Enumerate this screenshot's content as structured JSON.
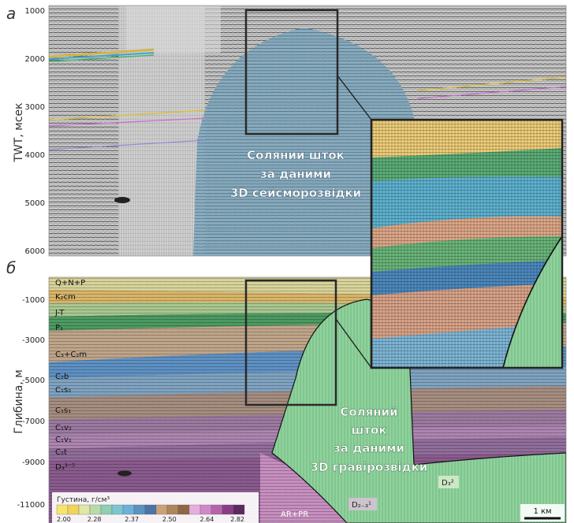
{
  "panel_a": {
    "letter": "а",
    "axis_title": "TWT, мсек",
    "ticks": [
      "1000",
      "2000",
      "3000",
      "4000",
      "5000",
      "6000"
    ],
    "salt_label": [
      "Соляний шток",
      "за даними",
      "3D сейсморозвідки"
    ]
  },
  "panel_b": {
    "letter": "б",
    "axis_title": "Глибина, м",
    "ticks": [
      "-1000",
      "-3000",
      "-5000",
      "-7000",
      "-9000",
      "-11000"
    ],
    "salt_label": [
      "Соляний",
      "шток",
      "за даними",
      "3D гравірозвідки"
    ],
    "layers": [
      {
        "label": "Q+N+P",
        "color": "#d8d49a"
      },
      {
        "label": "K₂cm",
        "color": "#d9b569"
      },
      {
        "label": "J-T",
        "color": "#a9c890"
      },
      {
        "label": "P₁",
        "color": "#4c9a61"
      },
      {
        "label": "C₃+C₂m",
        "color": "#bfa58a"
      },
      {
        "label": "C₂b",
        "color": "#5e91c4"
      },
      {
        "label": "C₁s₂",
        "color": "#7fa3c0"
      },
      {
        "label": "C₁s₁",
        "color": "#a58d80"
      },
      {
        "label": "C₁v₂",
        "color": "#9c7aa0"
      },
      {
        "label": "C₁v₁",
        "color": "#ad86b1"
      },
      {
        "label": "C₁t",
        "color": "#916d9b"
      },
      {
        "label": "D₃³⁻⁵",
        "color": "#8a5b8e"
      }
    ],
    "deep_labels": [
      "D₃²",
      "D₂₋₃¹",
      "AR+PR"
    ],
    "legend": {
      "title": "Густина, г/см³",
      "values": [
        "2.00",
        "2.28",
        "2.37",
        "2.50",
        "2.64",
        "2.82"
      ],
      "colors": [
        "#f7e56b",
        "#f3d35a",
        "#dfe8a4",
        "#b8dba9",
        "#8fcfb4",
        "#7cc6cf",
        "#6cb1d8",
        "#5b92c2",
        "#4d74a8",
        "#c9a27a",
        "#b08559",
        "#8e6845",
        "#e6aee0",
        "#d287c9",
        "#b564aa",
        "#8a3d86",
        "#5e2960"
      ]
    },
    "scale_bar": "1 км"
  },
  "colors": {
    "salt_blue": "#7ea8c0",
    "salt_green": "#8fd39c",
    "box_outline": "#2a2a2a",
    "label_white": "#ffffff"
  }
}
